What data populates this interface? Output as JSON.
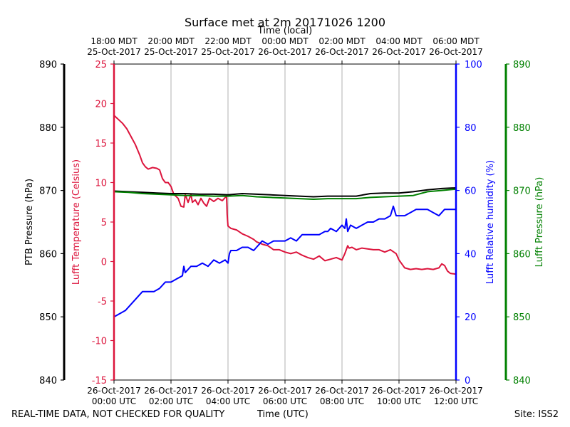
{
  "footer": {
    "left": "REAL-TIME DATA, NOT CHECKED FOR QUALITY",
    "center": "Time (UTC)",
    "right": "Site: ISS2"
  },
  "chart_data": {
    "type": "line",
    "title": "Surface met at 2m 20171026 1200",
    "top_xlabel": "Time (local)",
    "xlabel": "Time (UTC)",
    "x_range_hours": [
      0,
      12
    ],
    "x_ticks_bottom": [
      {
        "l1": "26-Oct-2017",
        "l2": "00:00 UTC",
        "h": 0
      },
      {
        "l1": "26-Oct-2017",
        "l2": "02:00 UTC",
        "h": 2
      },
      {
        "l1": "26-Oct-2017",
        "l2": "04:00 UTC",
        "h": 4
      },
      {
        "l1": "26-Oct-2017",
        "l2": "06:00 UTC",
        "h": 6
      },
      {
        "l1": "26-Oct-2017",
        "l2": "08:00 UTC",
        "h": 8
      },
      {
        "l1": "26-Oct-2017",
        "l2": "10:00 UTC",
        "h": 10
      },
      {
        "l1": "26-Oct-2017",
        "l2": "12:00 UTC",
        "h": 12
      }
    ],
    "x_ticks_top": [
      {
        "l1": "18:00 MDT",
        "l2": "25-Oct-2017",
        "h": 0
      },
      {
        "l1": "20:00 MDT",
        "l2": "25-Oct-2017",
        "h": 2
      },
      {
        "l1": "22:00 MDT",
        "l2": "25-Oct-2017",
        "h": 4
      },
      {
        "l1": "00:00 MDT",
        "l2": "26-Oct-2017",
        "h": 6
      },
      {
        "l1": "02:00 MDT",
        "l2": "26-Oct-2017",
        "h": 8
      },
      {
        "l1": "04:00 MDT",
        "l2": "26-Oct-2017",
        "h": 10
      },
      {
        "l1": "06:00 MDT",
        "l2": "26-Oct-2017",
        "h": 12
      }
    ],
    "grid": "vertical",
    "axes": {
      "ptb": {
        "label": "PTB Pressure (hPa)",
        "ylim": [
          840,
          890
        ],
        "ticks": [
          840,
          850,
          860,
          870,
          880,
          890
        ],
        "color": "#000000"
      },
      "temp": {
        "label": "Lufft Temperature (Celsius)",
        "ylim": [
          -15,
          25
        ],
        "ticks": [
          -15,
          -10,
          -5,
          0,
          5,
          10,
          15,
          20,
          25
        ],
        "color": "#dc143c"
      },
      "rh": {
        "label": "Lufft Relative humidity (%)",
        "ylim": [
          0,
          100
        ],
        "ticks": [
          0,
          20,
          40,
          60,
          80,
          100
        ],
        "color": "#0000ff"
      },
      "lufft_p": {
        "label": "Lufft Pressure (hPa)",
        "ylim": [
          840,
          890
        ],
        "ticks": [
          840,
          850,
          860,
          870,
          880,
          890
        ],
        "color": "#008000"
      }
    },
    "series": [
      {
        "key": "temp",
        "axis": "temp",
        "color": "#dc143c",
        "x": [
          0,
          0.15,
          0.3,
          0.45,
          0.6,
          0.75,
          0.9,
          1.0,
          1.1,
          1.2,
          1.35,
          1.5,
          1.6,
          1.7,
          1.8,
          1.9,
          2.0,
          2.1,
          2.25,
          2.35,
          2.45,
          2.5,
          2.6,
          2.7,
          2.75,
          2.85,
          2.95,
          3.05,
          3.15,
          3.25,
          3.35,
          3.5,
          3.65,
          3.8,
          3.95,
          3.97,
          4.0,
          4.1,
          4.3,
          4.5,
          4.7,
          4.9,
          5.0,
          5.2,
          5.4,
          5.6,
          5.8,
          6.0,
          6.2,
          6.4,
          6.6,
          6.8,
          7.0,
          7.2,
          7.4,
          7.6,
          7.8,
          8.0,
          8.1,
          8.2,
          8.25,
          8.35,
          8.5,
          8.7,
          8.9,
          9.1,
          9.3,
          9.5,
          9.7,
          9.9,
          10.0,
          10.2,
          10.4,
          10.6,
          10.8,
          11.0,
          11.2,
          11.4,
          11.5,
          11.6,
          11.7,
          11.8,
          12.0
        ],
        "values": [
          18.5,
          18.0,
          17.5,
          16.8,
          15.8,
          14.8,
          13.5,
          12.5,
          12.0,
          11.7,
          11.9,
          11.8,
          11.6,
          10.5,
          10.0,
          10.0,
          9.5,
          8.5,
          8.0,
          7.0,
          6.9,
          8.5,
          7.5,
          8.5,
          7.5,
          7.8,
          7.2,
          8.0,
          7.4,
          7.0,
          8.0,
          7.6,
          8.0,
          7.7,
          8.3,
          6.0,
          4.5,
          4.2,
          4.0,
          3.5,
          3.2,
          2.8,
          2.5,
          2.2,
          2.0,
          1.5,
          1.5,
          1.2,
          1.0,
          1.2,
          0.8,
          0.5,
          0.3,
          0.7,
          0.1,
          0.3,
          0.5,
          0.2,
          1.0,
          2.0,
          1.7,
          1.8,
          1.5,
          1.7,
          1.6,
          1.5,
          1.5,
          1.2,
          1.5,
          1.0,
          0.2,
          -0.8,
          -1.0,
          -0.9,
          -1.0,
          -0.9,
          -1.0,
          -0.8,
          -0.3,
          -0.5,
          -1.2,
          -1.5,
          -1.6
        ]
      },
      {
        "key": "rh",
        "axis": "rh",
        "color": "#0000ff",
        "x": [
          0,
          0.2,
          0.4,
          0.6,
          0.8,
          1.0,
          1.2,
          1.4,
          1.6,
          1.7,
          1.8,
          2.0,
          2.2,
          2.4,
          2.45,
          2.5,
          2.7,
          2.9,
          3.1,
          3.3,
          3.5,
          3.7,
          3.9,
          4.0,
          4.05,
          4.1,
          4.3,
          4.5,
          4.7,
          4.9,
          5.0,
          5.1,
          5.2,
          5.4,
          5.6,
          5.8,
          6.0,
          6.2,
          6.4,
          6.6,
          6.8,
          7.0,
          7.2,
          7.4,
          7.5,
          7.6,
          7.8,
          8.0,
          8.1,
          8.15,
          8.2,
          8.3,
          8.5,
          8.7,
          8.9,
          9.1,
          9.3,
          9.5,
          9.7,
          9.8,
          9.9,
          10.0,
          10.2,
          10.4,
          10.6,
          10.8,
          11.0,
          11.2,
          11.4,
          11.6,
          11.8,
          12.0
        ],
        "values": [
          20,
          21,
          22,
          24,
          26,
          28,
          28,
          28,
          29,
          30,
          31,
          31,
          32,
          33,
          36,
          34,
          36,
          36,
          37,
          36,
          38,
          37,
          38,
          37,
          40,
          41,
          41,
          42,
          42,
          41,
          42,
          43,
          44,
          43,
          44,
          44,
          44,
          45,
          44,
          46,
          46,
          46,
          46,
          47,
          47,
          48,
          47,
          49,
          48,
          51,
          47,
          49,
          48,
          49,
          50,
          50,
          51,
          51,
          52,
          55,
          52,
          52,
          52,
          53,
          54,
          54,
          54,
          53,
          52,
          54,
          54,
          54
        ]
      },
      {
        "key": "ptb",
        "axis": "ptb",
        "color": "#000000",
        "x": [
          0,
          0.5,
          1.0,
          1.5,
          2.0,
          2.5,
          3.0,
          3.5,
          4.0,
          4.5,
          5.0,
          5.5,
          6.0,
          6.5,
          7.0,
          7.5,
          8.0,
          8.5,
          9.0,
          9.5,
          10.0,
          10.5,
          11.0,
          11.5,
          12.0
        ],
        "values": [
          869.9,
          869.8,
          869.7,
          869.6,
          869.5,
          869.5,
          869.4,
          869.4,
          869.3,
          869.5,
          869.4,
          869.3,
          869.2,
          869.1,
          869.0,
          869.1,
          869.1,
          869.1,
          869.5,
          869.6,
          869.6,
          869.8,
          870.1,
          870.3,
          870.4
        ]
      },
      {
        "key": "lufft_p",
        "axis": "lufft_p",
        "color": "#008000",
        "x": [
          0,
          0.5,
          1.0,
          1.5,
          2.0,
          2.5,
          3.0,
          3.5,
          4.0,
          4.5,
          5.0,
          5.5,
          6.0,
          6.5,
          7.0,
          7.5,
          8.0,
          8.5,
          9.0,
          9.5,
          10.0,
          10.5,
          11.0,
          11.5,
          12.0
        ],
        "values": [
          869.8,
          869.7,
          869.5,
          869.4,
          869.3,
          869.2,
          869.2,
          869.1,
          869.1,
          869.2,
          869.0,
          868.9,
          868.8,
          868.7,
          868.6,
          868.7,
          868.7,
          868.7,
          868.9,
          869.0,
          869.1,
          869.2,
          869.8,
          870.0,
          870.2
        ]
      }
    ]
  }
}
